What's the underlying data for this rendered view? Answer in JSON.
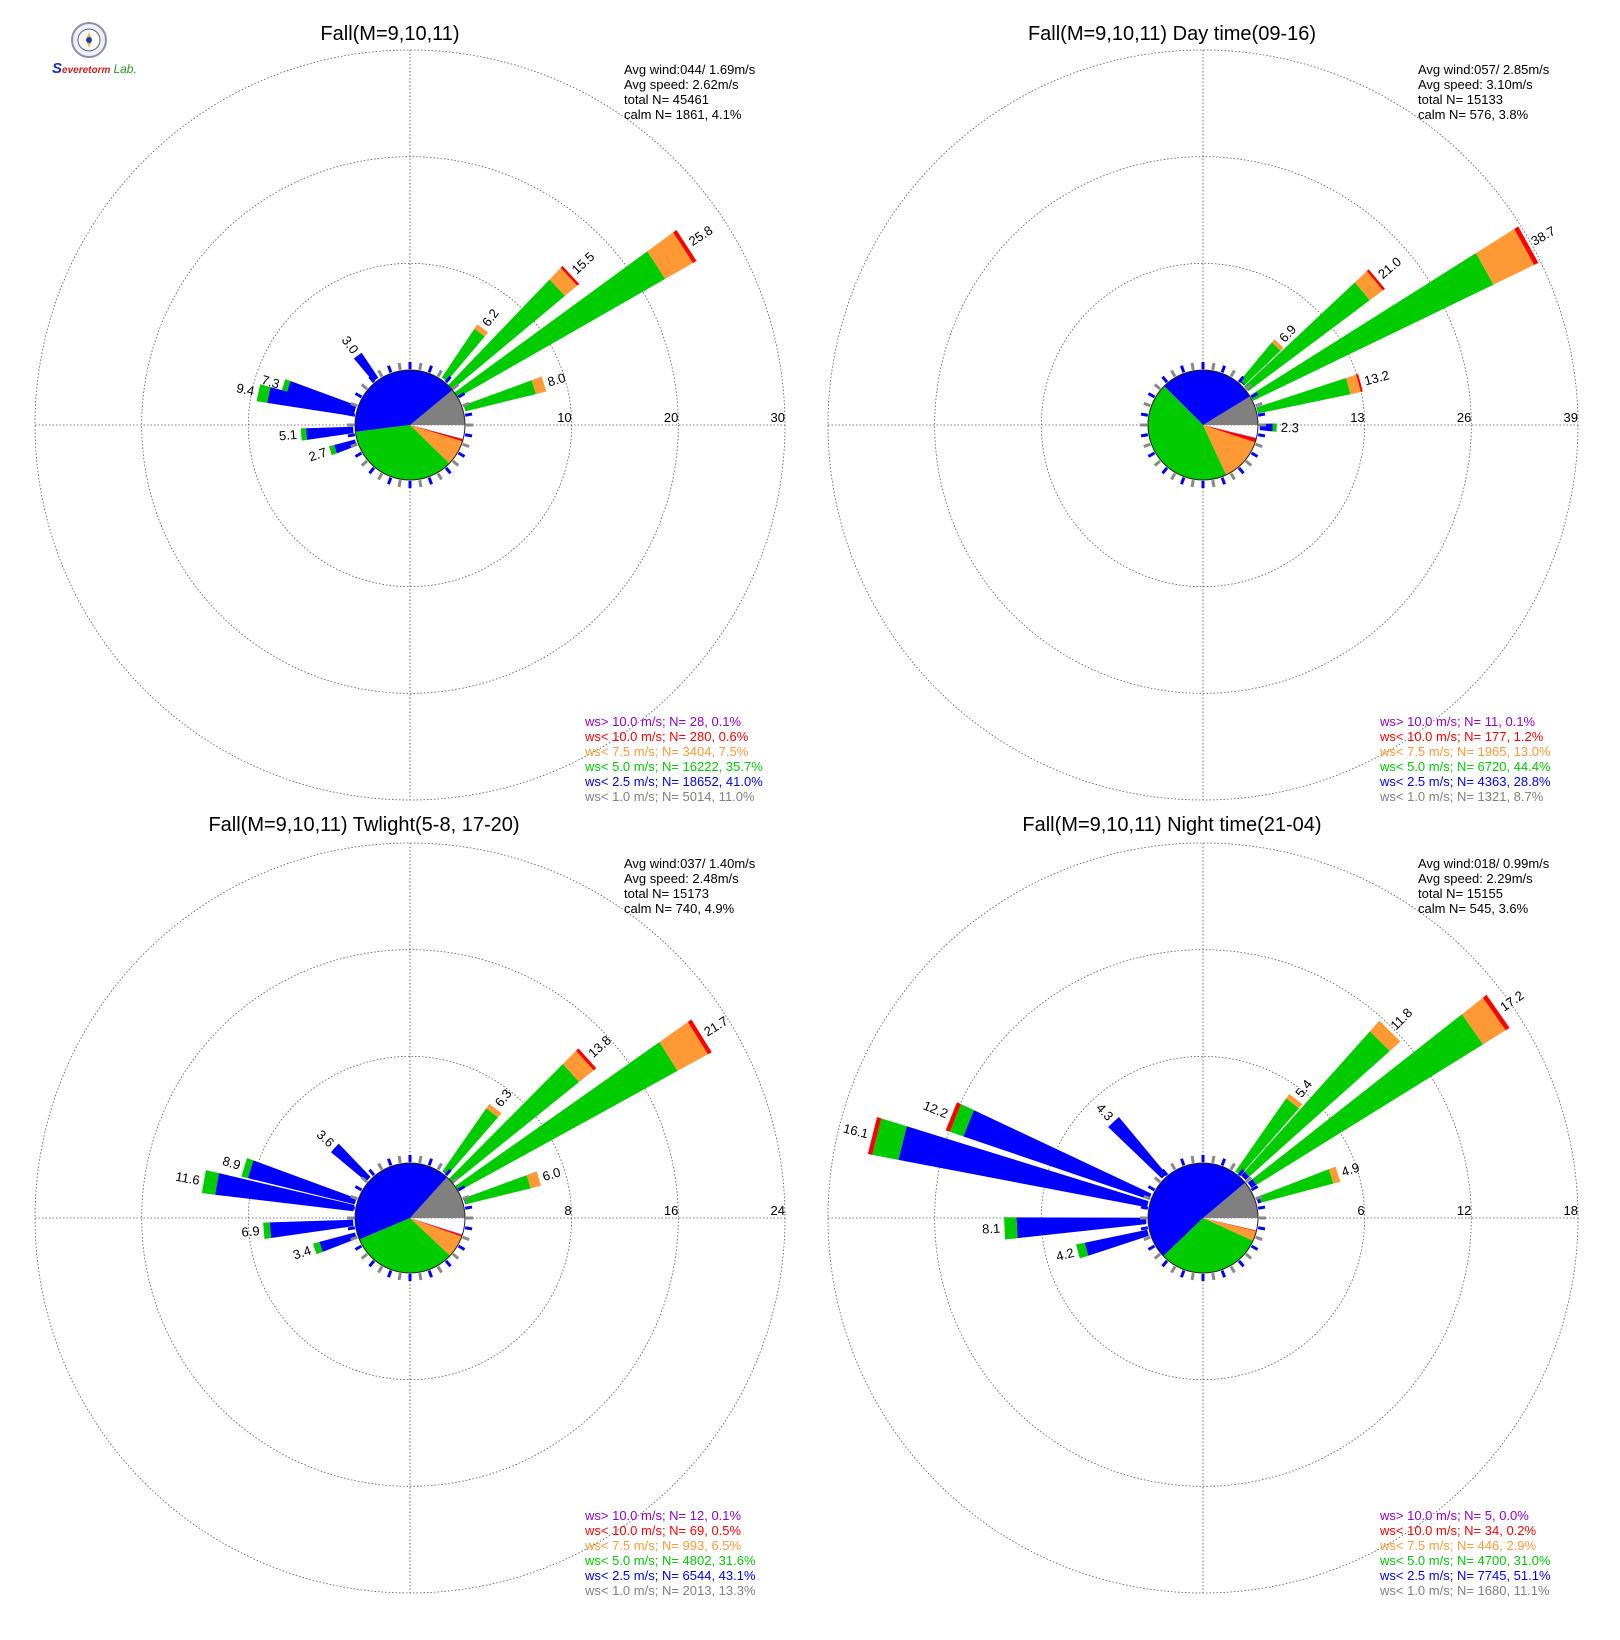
{
  "logo": {
    "seal_icon": "university-seal-icon",
    "text_a": "S",
    "text_b": "evere",
    "text_c": "torm",
    "text_d": "Lab."
  },
  "legend_colors": {
    "ws_gt_10": "#9400d3",
    "ws_lt_10": "#ff0000",
    "ws_lt_7_5": "#ff9933",
    "ws_lt_5": "#00cc00",
    "ws_lt_2_5": "#0000ff",
    "ws_lt_1": "#808080"
  },
  "chart_data": [
    {
      "type": "wind-rose",
      "title": "Fall(M=9,10,11)",
      "rings": [
        "10",
        "20",
        "30"
      ],
      "rmax": 30,
      "stats": [
        "Avg wind:044/ 1.69m/s",
        "Avg speed: 2.62m/s",
        "total N=      45461",
        "calm N=   1861,   4.1%"
      ],
      "legend": [
        "ws> 10.0 m/s; N=     28,  0.1%",
        "ws< 10.0 m/s; N=    280,  0.6%",
        "ws<  7.5 m/s; N=   3404,  7.5%",
        "ws<  5.0 m/s; N= 16222, 35.7%",
        "ws<  2.5 m/s; N= 18652, 41.0%",
        "ws<  1.0 m/s; N=   5014, 11.0%"
      ],
      "pie_fractions": [
        0.11,
        0.41,
        0.357,
        0.075,
        0.006,
        0.001
      ],
      "petals": [
        {
          "dir_deg": 57,
          "total": 25.8,
          "label": "25.8",
          "green": 22.5,
          "orange": 3.0
        },
        {
          "dir_deg": 47,
          "total": 15.5,
          "label": "15.5",
          "green": 13.8,
          "orange": 1.5
        },
        {
          "dir_deg": 37,
          "total": 6.2,
          "label": "6.2",
          "green": 5.5,
          "orange": 0.5
        },
        {
          "dir_deg": 73,
          "total": 8.0,
          "label": "8.0",
          "green": 6.8,
          "orange": 1.0
        },
        {
          "dir_deg": 287,
          "total": 7.3,
          "label": "7.3",
          "green": 0.5
        },
        {
          "dir_deg": 323,
          "total": 3.0,
          "label": "3.0"
        },
        {
          "dir_deg": 282,
          "total": 9.4,
          "label": "9.4",
          "green": 1.0
        },
        {
          "dir_deg": 265,
          "total": 5.1,
          "label": "5.1",
          "green": 0.5
        },
        {
          "dir_deg": 252,
          "total": 2.7,
          "label": "2.7",
          "green": 0.5
        }
      ]
    },
    {
      "type": "wind-rose",
      "title": "Fall(M=9,10,11) Day time(09-16)",
      "rings": [
        "13",
        "26",
        "39"
      ],
      "rmax": 39,
      "stats": [
        "Avg wind:057/ 2.85m/s",
        "Avg speed: 3.10m/s",
        "total N=      15133",
        "calm N=    576,   3.8%"
      ],
      "legend": [
        "ws> 10.0 m/s; N=     11,  0.1%",
        "ws< 10.0 m/s; N=    177,  1.2%",
        "ws<  7.5 m/s; N=   1965, 13.0%",
        "ws<  5.0 m/s; N=   6720, 44.4%",
        "ws<  2.5 m/s; N=   4363, 28.8%",
        "ws<  1.0 m/s; N=   1321,  8.7%"
      ],
      "pie_fractions": [
        0.087,
        0.288,
        0.444,
        0.13,
        0.012,
        0.001
      ],
      "petals": [
        {
          "dir_deg": 61,
          "total": 38.7,
          "label": "38.7",
          "green": 32.5,
          "orange": 5.5
        },
        {
          "dir_deg": 50,
          "total": 21.0,
          "label": "21.0",
          "green": 18.5,
          "orange": 2.0
        },
        {
          "dir_deg": 43,
          "total": 6.9,
          "label": "6.9",
          "green": 6.0,
          "orange": 0.5
        },
        {
          "dir_deg": 75,
          "total": 13.2,
          "label": "13.2",
          "green": 11.5,
          "orange": 1.3
        },
        {
          "dir_deg": 92,
          "total": 2.3,
          "label": "2.3",
          "green": 0.5
        }
      ]
    },
    {
      "type": "wind-rose",
      "title": "Fall(M=9,10,11) Twlight(5-8, 17-20)",
      "rings": [
        "8",
        "16",
        "24"
      ],
      "rmax": 24,
      "stats": [
        "Avg wind:037/ 1.40m/s",
        "Avg speed: 2.48m/s",
        "total N=      15173",
        "calm N=    740,   4.9%"
      ],
      "legend": [
        "ws> 10.0 m/s; N=     12,  0.1%",
        "ws< 10.0 m/s; N=     69,  0.5%",
        "ws<  7.5 m/s; N=    993,  6.5%",
        "ws<  5.0 m/s; N=   4802, 31.6%",
        "ws<  2.5 m/s; N=   6544, 43.1%",
        "ws<  1.0 m/s; N=   2013, 13.3%"
      ],
      "pie_fractions": [
        0.133,
        0.431,
        0.316,
        0.065,
        0.005,
        0.001
      ],
      "petals": [
        {
          "dir_deg": 58,
          "total": 21.7,
          "label": "21.7",
          "green": 18.8,
          "orange": 2.6
        },
        {
          "dir_deg": 48,
          "total": 13.8,
          "label": "13.8",
          "green": 12.2,
          "orange": 1.4
        },
        {
          "dir_deg": 38,
          "total": 6.3,
          "label": "6.3",
          "green": 5.7,
          "orange": 0.4
        },
        {
          "dir_deg": 73,
          "total": 6.0,
          "label": "6.0",
          "green": 5.0,
          "orange": 0.8
        },
        {
          "dir_deg": 287,
          "total": 8.9,
          "label": "8.9",
          "green": 0.5
        },
        {
          "dir_deg": 313,
          "total": 3.6,
          "label": "3.6"
        },
        {
          "dir_deg": 280,
          "total": 11.6,
          "label": "11.6",
          "green": 1.0
        },
        {
          "dir_deg": 265,
          "total": 6.9,
          "label": "6.9",
          "green": 0.5
        },
        {
          "dir_deg": 252,
          "total": 3.4,
          "label": "3.4",
          "green": 0.5
        }
      ]
    },
    {
      "type": "wind-rose",
      "title": "Fall(M=9,10,11) Night time(21-04)",
      "rings": [
        "6",
        "12",
        "18"
      ],
      "rmax": 18,
      "stats": [
        "Avg wind:018/ 0.99m/s",
        "Avg speed: 2.29m/s",
        "total N=      15155",
        "calm N=    545,   3.6%"
      ],
      "legend": [
        "ws> 10.0 m/s; N=      5,  0.0%",
        "ws< 10.0 m/s; N=     34,  0.2%",
        "ws<  7.5 m/s; N=    446,  2.9%",
        "ws<  5.0 m/s; N=   4700, 31.0%",
        "ws<  2.5 m/s; N=   7745, 51.1%",
        "ws<  1.0 m/s; N=   1680, 11.1%"
      ],
      "pie_fractions": [
        0.111,
        0.511,
        0.31,
        0.029,
        0.002,
        0.0
      ],
      "petals": [
        {
          "dir_deg": 55,
          "total": 17.2,
          "label": "17.2",
          "green": 15.0,
          "orange": 1.5
        },
        {
          "dir_deg": 45,
          "total": 11.8,
          "label": "11.8",
          "green": 10.6,
          "orange": 0.8
        },
        {
          "dir_deg": 38,
          "total": 5.4,
          "label": "5.4",
          "green": 5.0,
          "orange": 0.3
        },
        {
          "dir_deg": 72,
          "total": 4.9,
          "label": "4.9",
          "green": 4.2,
          "orange": 0.4
        },
        {
          "dir_deg": 292,
          "total": 12.2,
          "label": "12.2",
          "green": 0.8
        },
        {
          "dir_deg": 317,
          "total": 4.3,
          "label": "4.3"
        },
        {
          "dir_deg": 284,
          "total": 16.1,
          "label": "16.1",
          "green": 1.5
        },
        {
          "dir_deg": 267,
          "total": 8.1,
          "label": "8.1",
          "green": 0.7
        },
        {
          "dir_deg": 255,
          "total": 4.2,
          "label": "4.2",
          "green": 0.5
        }
      ]
    }
  ]
}
